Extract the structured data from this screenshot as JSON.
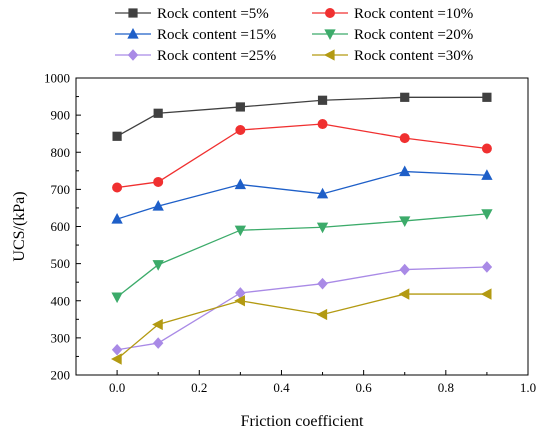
{
  "chart_data": {
    "type": "line",
    "xlabel": "Friction coefficient",
    "ylabel": "UCS/(kPa)",
    "xlim": [
      -0.1,
      1.0
    ],
    "ylim": [
      200,
      1000
    ],
    "xticks": [
      "0.0",
      "0.2",
      "0.4",
      "0.6",
      "0.8",
      "1.0"
    ],
    "yticks": [
      "200",
      "300",
      "400",
      "500",
      "600",
      "700",
      "800",
      "900",
      "1000"
    ],
    "x": [
      0.0,
      0.1,
      0.3,
      0.5,
      0.7,
      0.9
    ],
    "legend_position": "top",
    "series": [
      {
        "name": "Rock content =5%",
        "color": "#404040",
        "marker": "square",
        "values": [
          843,
          905,
          922,
          940,
          948,
          948
        ]
      },
      {
        "name": "Rock content =10%",
        "color": "#f03030",
        "marker": "circle",
        "values": [
          705,
          720,
          860,
          876,
          838,
          810
        ]
      },
      {
        "name": "Rock content =15%",
        "color": "#1e5fc8",
        "marker": "triangle-up",
        "values": [
          620,
          655,
          713,
          688,
          748,
          738
        ]
      },
      {
        "name": "Rock content =20%",
        "color": "#3cab6a",
        "marker": "triangle-down",
        "values": [
          410,
          497,
          590,
          598,
          615,
          634
        ]
      },
      {
        "name": "Rock content =25%",
        "color": "#a98ae6",
        "marker": "diamond",
        "values": [
          268,
          286,
          421,
          446,
          484,
          491
        ]
      },
      {
        "name": "Rock content =30%",
        "color": "#b39a12",
        "marker": "triangle-left",
        "values": [
          243,
          336,
          400,
          363,
          418,
          418
        ]
      }
    ]
  }
}
